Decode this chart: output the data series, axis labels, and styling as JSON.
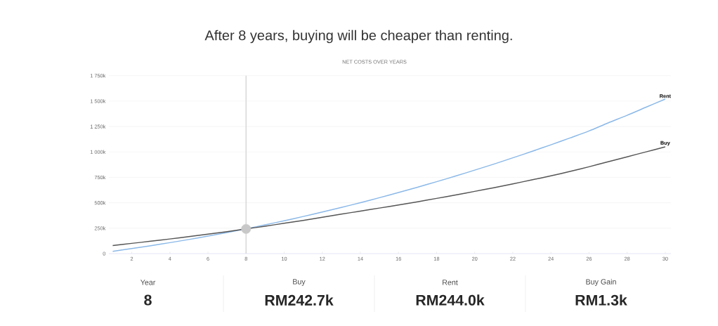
{
  "chart_data": {
    "type": "line",
    "title": "After 8 years, buying will be cheaper than renting.",
    "subtitle": "NET COSTS OVER YEARS",
    "x": [
      1,
      2,
      3,
      4,
      5,
      6,
      7,
      8,
      9,
      10,
      11,
      12,
      13,
      14,
      15,
      16,
      17,
      18,
      19,
      20,
      21,
      22,
      23,
      24,
      25,
      26,
      27,
      28,
      29,
      30
    ],
    "series": [
      {
        "name": "Rent",
        "color": "#8ab8e8",
        "values": [
          23,
          50,
          78,
          108,
          139,
          172,
          207,
          244,
          283,
          323,
          365,
          409,
          454,
          501,
          550,
          601,
          653,
          707,
          763,
          821,
          880,
          942,
          1005,
          1070,
          1137,
          1206,
          1285,
          1360,
          1440,
          1520
        ]
      },
      {
        "name": "Buy",
        "color": "#555555",
        "values": [
          80,
          101,
          122,
          144,
          167,
          191,
          216,
          243,
          270,
          298,
          327,
          357,
          388,
          418,
          448,
          478,
          510,
          543,
          577,
          612,
          648,
          686,
          725,
          765,
          808,
          854,
          903,
          952,
          1001,
          1050
        ]
      },
      {
        "type": "scatter",
        "color": "#c8c8c8",
        "x": [
          8
        ],
        "values": [
          243
        ]
      }
    ],
    "xlim": [
      0.8,
      30.3
    ],
    "ylim": [
      0,
      1750
    ],
    "xticks": [
      2,
      4,
      6,
      8,
      10,
      12,
      14,
      16,
      18,
      20,
      22,
      24,
      26,
      28,
      30
    ],
    "yticks": [
      {
        "value": 0,
        "label": "0"
      },
      {
        "value": 250,
        "label": "250k"
      },
      {
        "value": 500,
        "label": "500k"
      },
      {
        "value": 750,
        "label": "750k"
      },
      {
        "value": 1000,
        "label": "1 000k"
      },
      {
        "value": 1250,
        "label": "1 250k"
      },
      {
        "value": 1500,
        "label": "1 500k"
      },
      {
        "value": 1750,
        "label": "1 750k"
      }
    ],
    "grid": "y",
    "ref_lines": [
      {
        "axis": "x",
        "value": 8,
        "color": "#d9d9d9"
      }
    ],
    "annotations": [
      "Year",
      "8",
      "Buy",
      "RM242.7k",
      "Rent",
      "RM244.0k",
      "Buy Gain",
      "RM1.3k"
    ]
  }
}
